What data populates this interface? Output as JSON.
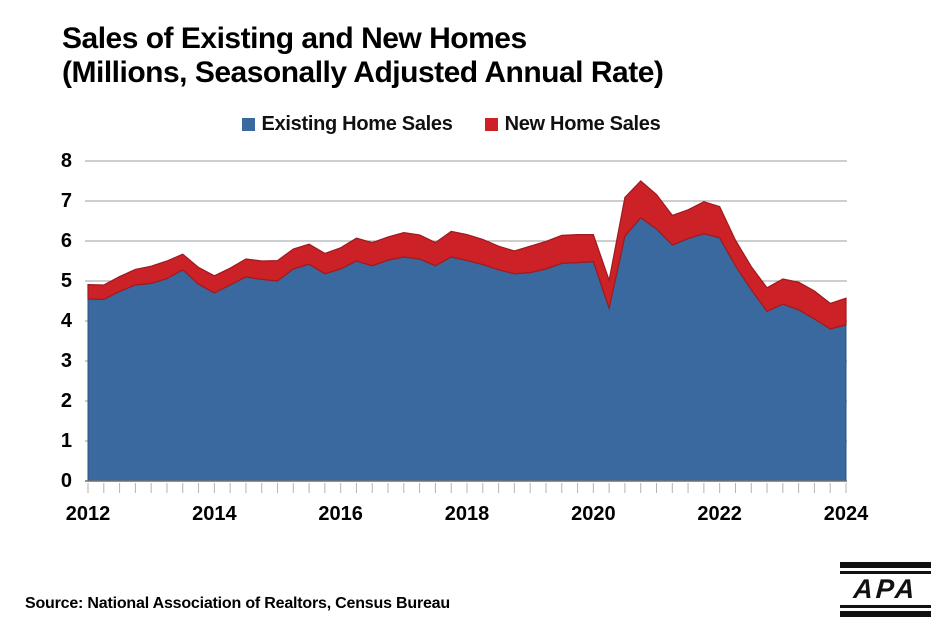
{
  "title": {
    "line1": "Sales of Existing and New Homes",
    "line2": "(Millions, Seasonally Adjusted Annual Rate)"
  },
  "legend": {
    "items": [
      {
        "label": "Existing Home Sales",
        "color": "#39699E"
      },
      {
        "label": "New Home Sales",
        "color": "#CB2127"
      }
    ]
  },
  "source_note": "Source: National Association of Realtors, Census Bureau",
  "logo_text": "APA",
  "chart_data": {
    "type": "area",
    "stacked": true,
    "title": "Sales of Existing and New Homes (Millions, Seasonally Adjusted Annual Rate)",
    "frequency": "quarterly",
    "grid": true,
    "legend_position": "top",
    "ylim": [
      0,
      8
    ],
    "y_ticks": [
      0,
      1,
      2,
      3,
      4,
      5,
      6,
      7,
      8
    ],
    "x_tick_labels": [
      "2012",
      "2014",
      "2016",
      "2018",
      "2020",
      "2022",
      "2024"
    ],
    "categories": [
      "2012 Q1",
      "2012 Q2",
      "2012 Q3",
      "2012 Q4",
      "2013 Q1",
      "2013 Q2",
      "2013 Q3",
      "2013 Q4",
      "2014 Q1",
      "2014 Q2",
      "2014 Q3",
      "2014 Q4",
      "2015 Q1",
      "2015 Q2",
      "2015 Q3",
      "2015 Q4",
      "2016 Q1",
      "2016 Q2",
      "2016 Q3",
      "2016 Q4",
      "2017 Q1",
      "2017 Q2",
      "2017 Q3",
      "2017 Q4",
      "2018 Q1",
      "2018 Q2",
      "2018 Q3",
      "2018 Q4",
      "2019 Q1",
      "2019 Q2",
      "2019 Q3",
      "2019 Q4",
      "2020 Q1",
      "2020 Q2",
      "2020 Q3",
      "2020 Q4",
      "2021 Q1",
      "2021 Q2",
      "2021 Q3",
      "2021 Q4",
      "2022 Q1",
      "2022 Q2",
      "2022 Q3",
      "2022 Q4",
      "2023 Q1",
      "2023 Q2",
      "2023 Q3",
      "2023 Q4",
      "2024 Q1"
    ],
    "series": [
      {
        "name": "Existing Home Sales",
        "color": "#39699E",
        "edge_color": "#2A547D",
        "values": [
          4.55,
          4.54,
          4.74,
          4.9,
          4.94,
          5.06,
          5.28,
          4.92,
          4.7,
          4.9,
          5.1,
          5.04,
          5.0,
          5.3,
          5.42,
          5.18,
          5.3,
          5.5,
          5.38,
          5.52,
          5.6,
          5.55,
          5.38,
          5.6,
          5.51,
          5.41,
          5.28,
          5.18,
          5.21,
          5.3,
          5.44,
          5.46,
          5.48,
          4.32,
          6.12,
          6.58,
          6.3,
          5.9,
          6.06,
          6.18,
          6.08,
          5.38,
          4.78,
          4.24,
          4.42,
          4.28,
          4.05,
          3.8,
          3.9
        ]
      },
      {
        "name": "New Home Sales",
        "color": "#CB2127",
        "edge_color": "#9E1B1F",
        "values": [
          0.36,
          0.36,
          0.37,
          0.39,
          0.43,
          0.44,
          0.39,
          0.42,
          0.43,
          0.42,
          0.45,
          0.46,
          0.51,
          0.5,
          0.5,
          0.51,
          0.53,
          0.57,
          0.58,
          0.58,
          0.61,
          0.6,
          0.58,
          0.64,
          0.65,
          0.63,
          0.59,
          0.57,
          0.66,
          0.69,
          0.7,
          0.7,
          0.68,
          0.7,
          0.97,
          0.92,
          0.86,
          0.74,
          0.72,
          0.8,
          0.78,
          0.64,
          0.58,
          0.59,
          0.63,
          0.69,
          0.7,
          0.64,
          0.67
        ]
      }
    ]
  }
}
